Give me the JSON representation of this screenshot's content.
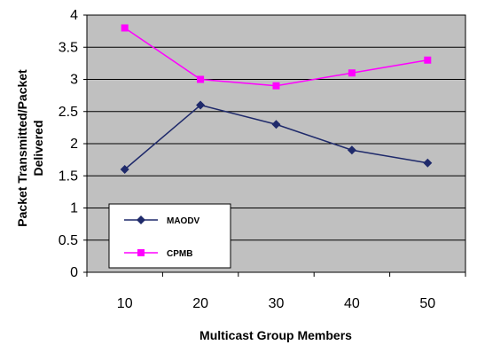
{
  "chart_data": {
    "type": "line",
    "xlabel": "Multicast Group Members",
    "ylabel": [
      "Packet Transmitted/Packet",
      "Delivered"
    ],
    "categories": [
      "10",
      "20",
      "30",
      "40",
      "50"
    ],
    "x": [
      10,
      20,
      30,
      40,
      50
    ],
    "ylim": [
      0,
      4
    ],
    "yticks": [
      "0",
      "0.5",
      "1",
      "1.5",
      "2",
      "2.5",
      "3",
      "3.5",
      "4"
    ],
    "grid": true,
    "legend_position": "bottom-left",
    "series": [
      {
        "name": "MAODV",
        "values": [
          1.6,
          2.6,
          2.3,
          1.9,
          1.7
        ],
        "color": "#1f2a6b",
        "marker": "diamond"
      },
      {
        "name": "CPMB",
        "values": [
          3.8,
          3.0,
          2.9,
          3.1,
          3.3
        ],
        "color": "#ff00ff",
        "marker": "square"
      }
    ],
    "plot_background": "#c0c0c0"
  }
}
